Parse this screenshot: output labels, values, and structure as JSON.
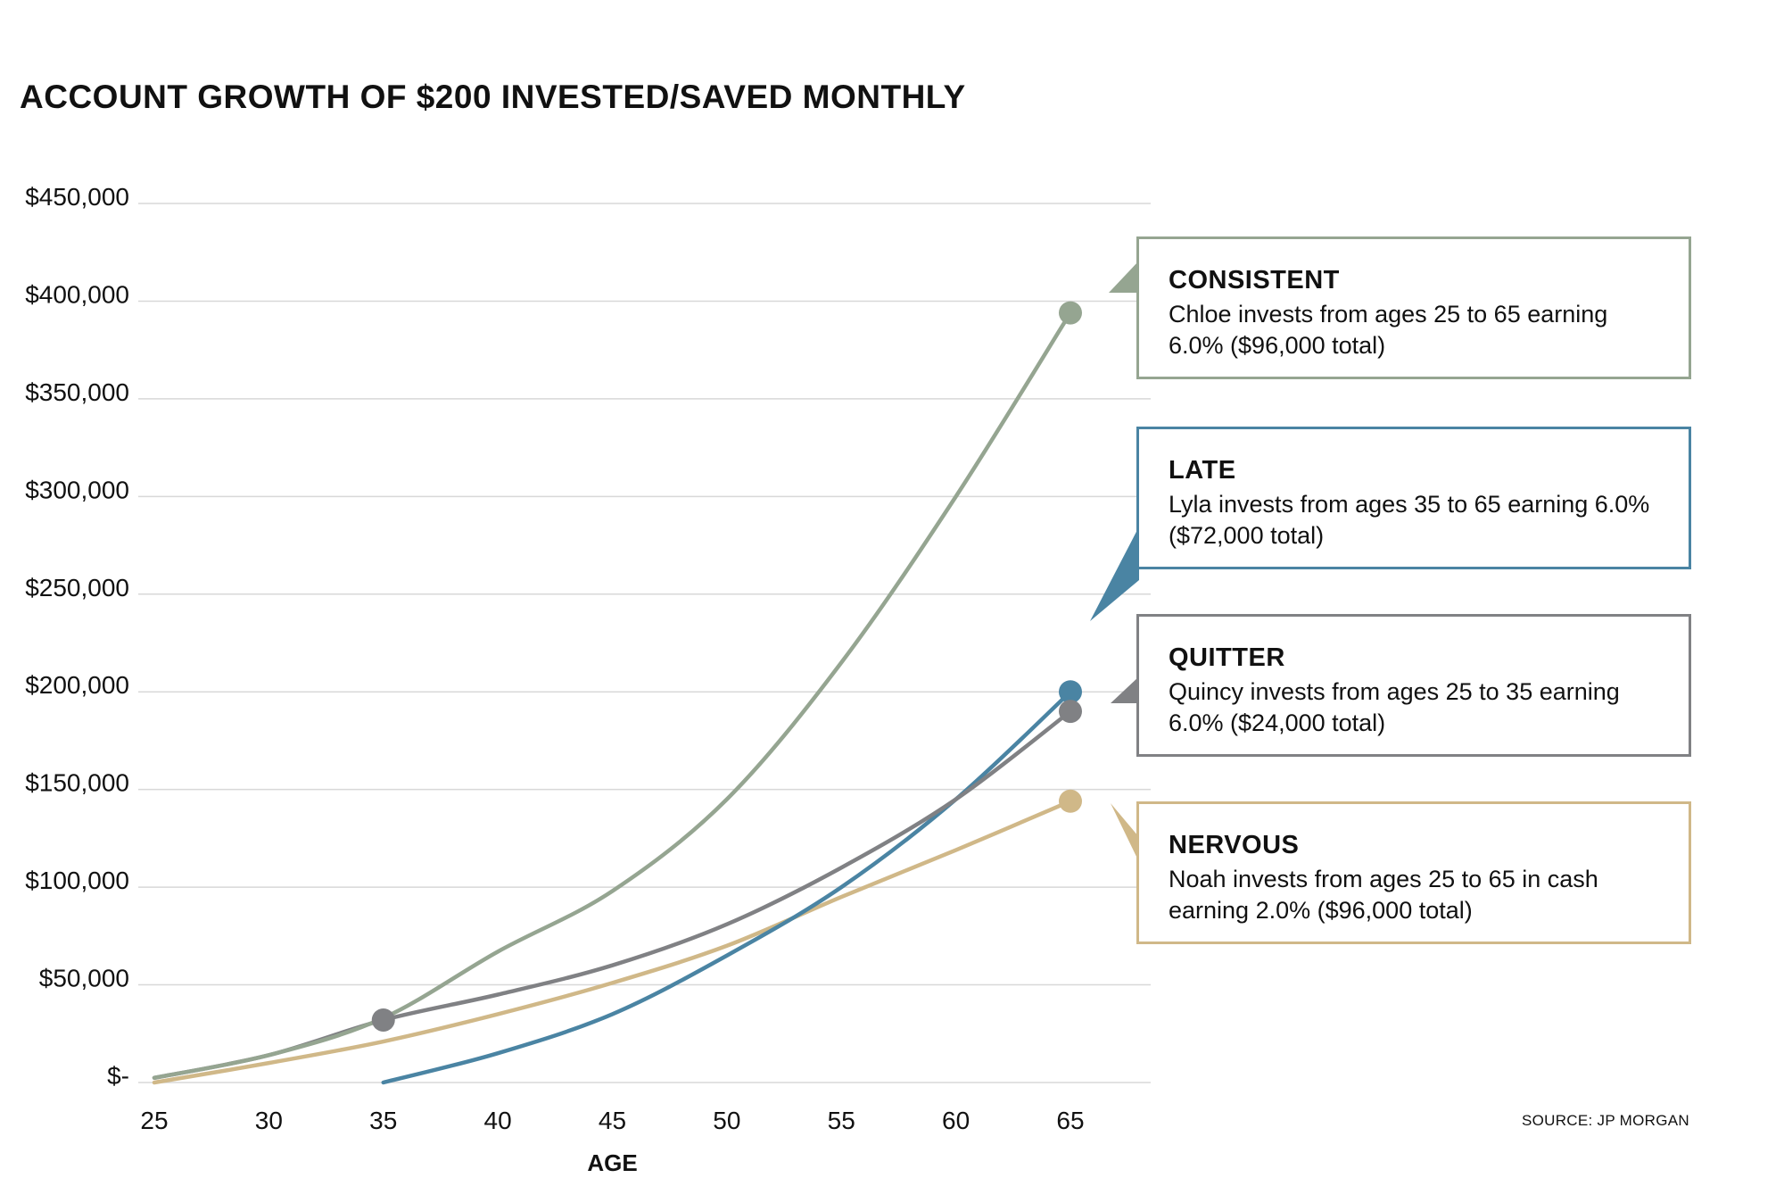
{
  "title": "ACCOUNT GROWTH OF $200 INVESTED/SAVED MONTHLY",
  "source": "SOURCE: JP MORGAN",
  "chart_data": {
    "type": "line",
    "title": "ACCOUNT GROWTH OF $200 INVESTED/SAVED MONTHLY",
    "xlabel": "AGE",
    "ylabel": "",
    "xlim": [
      25,
      68
    ],
    "ylim": [
      0,
      450000
    ],
    "x_ticks": [
      25,
      30,
      35,
      40,
      45,
      50,
      55,
      60,
      65
    ],
    "x_tick_labels": [
      "25",
      "30",
      "35",
      "40",
      "45",
      "50",
      "55",
      "60",
      "65"
    ],
    "y_ticks": [
      0,
      50000,
      100000,
      150000,
      200000,
      250000,
      300000,
      350000,
      400000,
      450000
    ],
    "y_tick_labels": [
      "$-",
      "$50,000",
      "$100,000",
      "$150,000",
      "$200,000",
      "$250,000",
      "$300,000",
      "$350,000",
      "$400,000",
      "$450,000"
    ],
    "grid": true,
    "series": [
      {
        "name": "CONSISTENT",
        "description": "Chloe invests from ages 25 to 65 earning 6.0% ($96,000 total)",
        "color": "#95a591",
        "x": [
          25,
          30,
          35,
          40,
          45,
          50,
          55,
          60,
          65
        ],
        "values": [
          2400,
          14000,
          33000,
          67000,
          98000,
          145000,
          215000,
          300000,
          394000
        ],
        "marker_at": [
          65,
          394000
        ]
      },
      {
        "name": "LATE",
        "description": "Lyla invests from ages 35 to 65 earning 6.0% ($72,000 total)",
        "color": "#4a84a3",
        "x": [
          35,
          40,
          45,
          50,
          55,
          60,
          65
        ],
        "values": [
          0,
          15000,
          35000,
          65000,
          100000,
          145000,
          200000
        ],
        "marker_at": [
          65,
          200000
        ]
      },
      {
        "name": "QUITTER",
        "description": "Quincy invests from ages 25 to 35 earning 6.0% ($24,000 total)",
        "color": "#808184",
        "x": [
          25,
          30,
          35,
          40,
          45,
          50,
          55,
          60,
          65
        ],
        "values": [
          2400,
          14000,
          32000,
          45000,
          60000,
          81000,
          110000,
          145000,
          190000
        ],
        "marker_at": [
          [
            35,
            32000
          ],
          [
            65,
            190000
          ]
        ]
      },
      {
        "name": "NERVOUS",
        "description": "Noah invests from ages 25 to 65 in cash earning 2.0% ($96,000 total)",
        "color": "#d0b888",
        "x": [
          25,
          30,
          35,
          40,
          45,
          50,
          55,
          60,
          65
        ],
        "values": [
          0,
          10000,
          21000,
          35000,
          51000,
          70000,
          95000,
          119000,
          144000
        ],
        "marker_at": [
          65,
          144000
        ]
      }
    ]
  }
}
